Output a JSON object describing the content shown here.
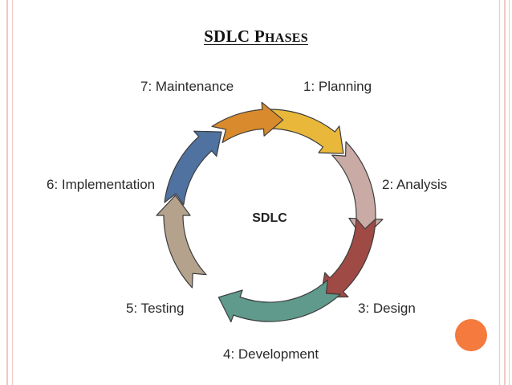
{
  "slide": {
    "title_first": "SDLC P",
    "title_rest": "HASES",
    "accent_dot_color": "#f47a3d"
  },
  "diagram": {
    "center": "SDLC",
    "phases": [
      {
        "label": "1: Planning",
        "color": "#e9b83a"
      },
      {
        "label": "2: Analysis",
        "color": "#c9aaa4"
      },
      {
        "label": "3: Design",
        "color": "#a04a45"
      },
      {
        "label": "4: Development",
        "color": "#5f9a8c"
      },
      {
        "label": "5: Testing",
        "color": "#b5a28d"
      },
      {
        "label": "6: Implementation",
        "color": "#4f72a0"
      },
      {
        "label": "7: Maintenance",
        "color": "#d88a2c"
      }
    ]
  }
}
